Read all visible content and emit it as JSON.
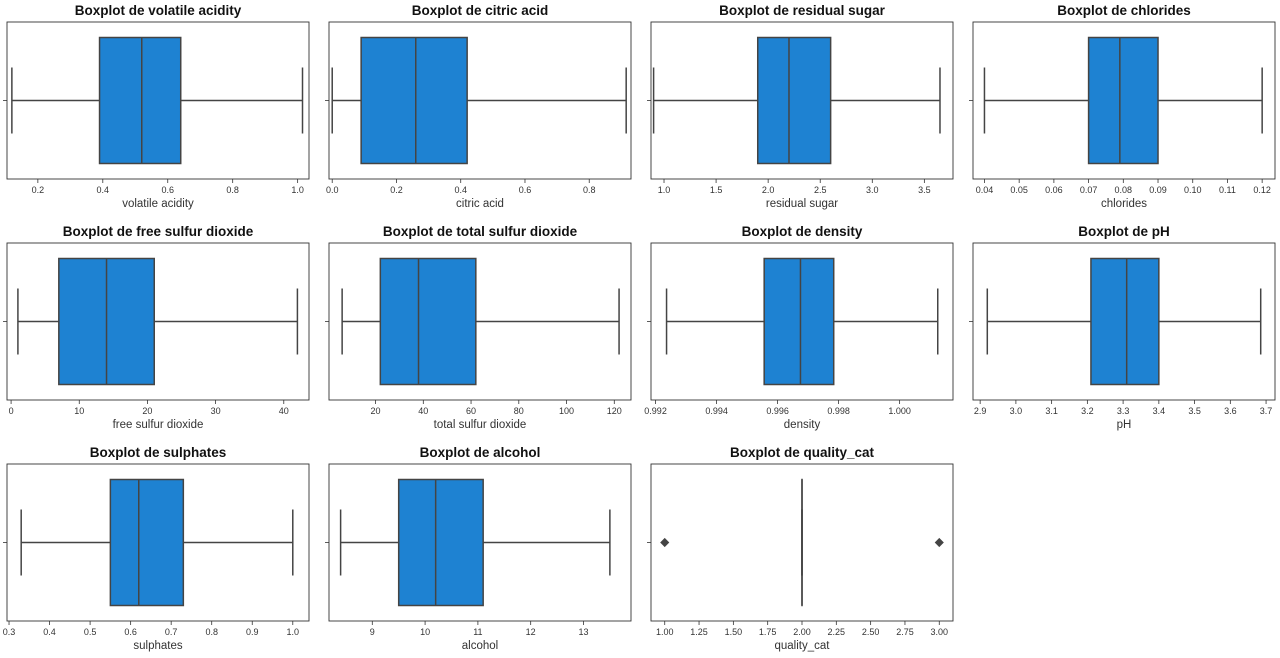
{
  "chart_data": [
    {
      "type": "boxplot",
      "title": "Boxplot de volatile acidity",
      "xlabel": "volatile acidity",
      "xlim": [
        0.105,
        1.035
      ],
      "xticks": [
        0.2,
        0.4,
        0.6,
        0.8,
        1.0
      ],
      "xtick_labels": [
        "0.2",
        "0.4",
        "0.6",
        "0.8",
        "1.0"
      ],
      "whisker_low": 0.12,
      "q1": 0.39,
      "median": 0.52,
      "q3": 0.64,
      "whisker_high": 1.015,
      "outliers": [],
      "color": "#1e82d2"
    },
    {
      "type": "boxplot",
      "title": "Boxplot de citric acid",
      "xlabel": "citric acid",
      "xlim": [
        -0.01,
        0.93
      ],
      "xticks": [
        0.0,
        0.2,
        0.4,
        0.6,
        0.8
      ],
      "xtick_labels": [
        "0.0",
        "0.2",
        "0.4",
        "0.6",
        "0.8"
      ],
      "whisker_low": 0.0,
      "q1": 0.09,
      "median": 0.26,
      "q3": 0.42,
      "whisker_high": 0.915,
      "outliers": [],
      "color": "#1e82d2"
    },
    {
      "type": "boxplot",
      "title": "Boxplot de residual sugar",
      "xlabel": "residual sugar",
      "xlim": [
        0.875,
        3.775
      ],
      "xticks": [
        1.0,
        1.5,
        2.0,
        2.5,
        3.0,
        3.5
      ],
      "xtick_labels": [
        "1.0",
        "1.5",
        "2.0",
        "2.5",
        "3.0",
        "3.5"
      ],
      "whisker_low": 0.9,
      "q1": 1.9,
      "median": 2.2,
      "q3": 2.6,
      "whisker_high": 3.65,
      "outliers": [],
      "color": "#1e82d2"
    },
    {
      "type": "boxplot",
      "title": "Boxplot de chlorides",
      "xlabel": "chlorides",
      "xlim": [
        0.0367,
        0.1237
      ],
      "xticks": [
        0.04,
        0.05,
        0.06,
        0.07,
        0.08,
        0.09,
        0.1,
        0.11,
        0.12
      ],
      "xtick_labels": [
        "0.04",
        "0.05",
        "0.06",
        "0.07",
        "0.08",
        "0.09",
        "0.10",
        "0.11",
        "0.12"
      ],
      "whisker_low": 0.04,
      "q1": 0.07,
      "median": 0.079,
      "q3": 0.09,
      "whisker_high": 0.12,
      "outliers": [],
      "color": "#1e82d2"
    },
    {
      "type": "boxplot",
      "title": "Boxplot de free sulfur dioxide",
      "xlabel": "free sulfur dioxide",
      "xlim": [
        -0.6,
        43.7
      ],
      "xticks": [
        0,
        10,
        20,
        30,
        40
      ],
      "xtick_labels": [
        "0",
        "10",
        "20",
        "30",
        "40"
      ],
      "whisker_low": 1,
      "q1": 7,
      "median": 14,
      "q3": 21,
      "whisker_high": 42,
      "outliers": [],
      "color": "#1e82d2"
    },
    {
      "type": "boxplot",
      "title": "Boxplot de total sulfur dioxide",
      "xlabel": "total sulfur dioxide",
      "xlim": [
        0.5,
        127
      ],
      "xticks": [
        20,
        40,
        60,
        80,
        100,
        120
      ],
      "xtick_labels": [
        "20",
        "40",
        "60",
        "80",
        "100",
        "120"
      ],
      "whisker_low": 6,
      "q1": 22,
      "median": 38,
      "q3": 62,
      "whisker_high": 122,
      "outliers": [],
      "color": "#1e82d2"
    },
    {
      "type": "boxplot",
      "title": "Boxplot de density",
      "xlabel": "density",
      "xlim": [
        0.99185,
        1.00175
      ],
      "xticks": [
        0.992,
        0.994,
        0.996,
        0.998,
        1.0
      ],
      "xtick_labels": [
        "0.992",
        "0.994",
        "0.996",
        "0.998",
        "1.000"
      ],
      "whisker_low": 0.99236,
      "q1": 0.99556,
      "median": 0.99675,
      "q3": 0.99784,
      "whisker_high": 1.00125,
      "outliers": [],
      "color": "#1e82d2"
    },
    {
      "type": "boxplot",
      "title": "Boxplot de pH",
      "xlabel": "pH",
      "xlim": [
        2.88,
        3.725
      ],
      "xticks": [
        2.9,
        3.0,
        3.1,
        3.2,
        3.3,
        3.4,
        3.5,
        3.6,
        3.7
      ],
      "xtick_labels": [
        "2.9",
        "3.0",
        "3.1",
        "3.2",
        "3.3",
        "3.4",
        "3.5",
        "3.6",
        "3.7"
      ],
      "whisker_low": 2.92,
      "q1": 3.21,
      "median": 3.31,
      "q3": 3.4,
      "whisker_high": 3.685,
      "outliers": [],
      "color": "#1e82d2"
    },
    {
      "type": "boxplot",
      "title": "Boxplot de sulphates",
      "xlabel": "sulphates",
      "xlim": [
        0.295,
        1.04
      ],
      "xticks": [
        0.3,
        0.4,
        0.5,
        0.6,
        0.7,
        0.8,
        0.9,
        1.0
      ],
      "xtick_labels": [
        "0.3",
        "0.4",
        "0.5",
        "0.6",
        "0.7",
        "0.8",
        "0.9",
        "1.0"
      ],
      "whisker_low": 0.33,
      "q1": 0.55,
      "median": 0.62,
      "q3": 0.73,
      "whisker_high": 1.0,
      "outliers": [],
      "color": "#1e82d2"
    },
    {
      "type": "boxplot",
      "title": "Boxplot de alcohol",
      "xlabel": "alcohol",
      "xlim": [
        8.18,
        13.9
      ],
      "xticks": [
        9,
        10,
        11,
        12,
        13
      ],
      "xtick_labels": [
        "9",
        "10",
        "11",
        "12",
        "13"
      ],
      "whisker_low": 8.4,
      "q1": 9.5,
      "median": 10.2,
      "q3": 11.1,
      "whisker_high": 13.5,
      "outliers": [],
      "color": "#1e82d2"
    },
    {
      "type": "boxplot",
      "title": "Boxplot de quality_cat",
      "xlabel": "quality_cat",
      "xlim": [
        0.9,
        3.1
      ],
      "xticks": [
        1.0,
        1.25,
        1.5,
        1.75,
        2.0,
        2.25,
        2.5,
        2.75,
        3.0
      ],
      "xtick_labels": [
        "1.00",
        "1.25",
        "1.50",
        "1.75",
        "2.00",
        "2.25",
        "2.50",
        "2.75",
        "3.00"
      ],
      "whisker_low": 2.0,
      "q1": 2.0,
      "median": 2.0,
      "q3": 2.0,
      "whisker_high": 2.0,
      "outliers": [
        1,
        3
      ],
      "color": "#1e82d2"
    }
  ]
}
